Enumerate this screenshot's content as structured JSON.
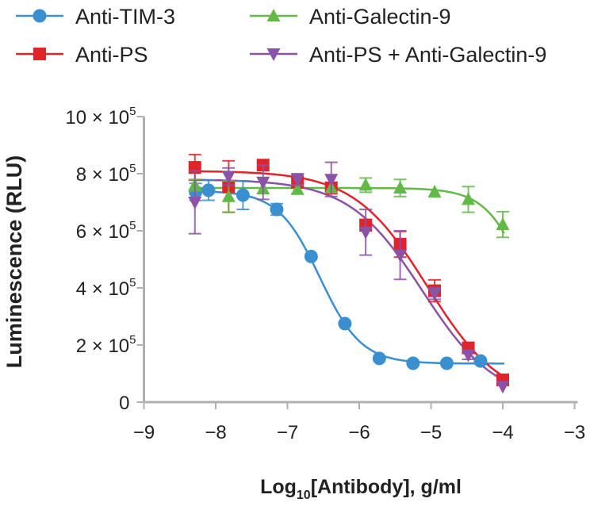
{
  "chart_data": {
    "type": "scatter",
    "xlabel_main": "Log",
    "xlabel_sub": "10",
    "xlabel_rest": "[Antibody], g/ml",
    "ylabel": "Luminescence (RLU)",
    "xlim": [
      -9,
      -3
    ],
    "ylim": [
      0,
      1000000
    ],
    "x_ticks": [
      -9,
      -8,
      -7,
      -6,
      -5,
      -4,
      -3
    ],
    "x_tick_labels": [
      "−9",
      "−8",
      "−7",
      "−6",
      "−5",
      "−4",
      "−3"
    ],
    "y_ticks": [
      0,
      200000,
      400000,
      600000,
      800000,
      1000000
    ],
    "y_tick_labels": [
      {
        "base": "0",
        "exp": ""
      },
      {
        "base": "2 × 10",
        "exp": "5"
      },
      {
        "base": "4 × 10",
        "exp": "5"
      },
      {
        "base": "6 × 10",
        "exp": "5"
      },
      {
        "base": "8 × 10",
        "exp": "5"
      },
      {
        "base": "10 × 10",
        "exp": "5"
      }
    ],
    "grid": false,
    "legend_placement": "top",
    "series": [
      {
        "name": "Anti-TIM-3",
        "color": "#3a8fd1",
        "marker": "circle",
        "x": [
          -8.28,
          -8.1,
          -7.62,
          -7.15,
          -6.67,
          -6.2,
          -5.72,
          -5.25,
          -4.78,
          -4.31
        ],
        "y": [
          736000,
          742000,
          725000,
          675000,
          510000,
          275000,
          153000,
          136000,
          136000,
          144000
        ],
        "err": [
          30000,
          35000,
          50000,
          20000,
          0,
          0,
          0,
          0,
          0,
          0
        ],
        "fit": {
          "top": 740000,
          "bottom": 135000,
          "log_ec50": -6.55,
          "hill": 1.5
        }
      },
      {
        "name": "Anti-PS",
        "color": "#e0242a",
        "marker": "square",
        "x": [
          -8.29,
          -7.82,
          -7.34,
          -6.86,
          -6.39,
          -5.91,
          -5.43,
          -4.95,
          -4.48,
          -4.0
        ],
        "y": [
          822000,
          755000,
          830000,
          770000,
          750000,
          620000,
          553000,
          390000,
          190000,
          78000
        ],
        "err": [
          45000,
          90000,
          0,
          15000,
          20000,
          20000,
          45000,
          38000,
          15000,
          0
        ],
        "fit": {
          "top": 810000,
          "bottom": 0,
          "log_ec50": -5.05,
          "hill": 0.85
        }
      },
      {
        "name": "Anti-Galectin-9",
        "color": "#62b946",
        "marker": "triangle-up",
        "x": [
          -8.29,
          -7.82,
          -7.34,
          -6.86,
          -6.39,
          -5.91,
          -5.43,
          -4.95,
          -4.48,
          -4.0
        ],
        "y": [
          760000,
          720000,
          747000,
          745000,
          750000,
          760000,
          750000,
          736000,
          710000,
          622000
        ],
        "err": [
          20000,
          55000,
          0,
          15000,
          0,
          25000,
          30000,
          0,
          45000,
          45000
        ],
        "fit": {
          "top": 750000,
          "bottom": 0,
          "log_ec50": -3.6,
          "hill": 1.5
        }
      },
      {
        "name": "Anti-PS + Anti-Galectin-9",
        "color": "#8c52a8",
        "marker": "triangle-down",
        "x": [
          -8.29,
          -7.82,
          -7.34,
          -6.86,
          -6.39,
          -5.91,
          -5.43,
          -4.95,
          -4.48,
          -4.0
        ],
        "y": [
          700000,
          790000,
          770000,
          780000,
          780000,
          595000,
          515000,
          380000,
          165000,
          55000
        ],
        "err": [
          110000,
          30000,
          60000,
          20000,
          60000,
          80000,
          85000,
          20000,
          15000,
          0
        ],
        "fit": {
          "top": 780000,
          "bottom": 0,
          "log_ec50": -5.12,
          "hill": 0.85
        }
      }
    ]
  }
}
